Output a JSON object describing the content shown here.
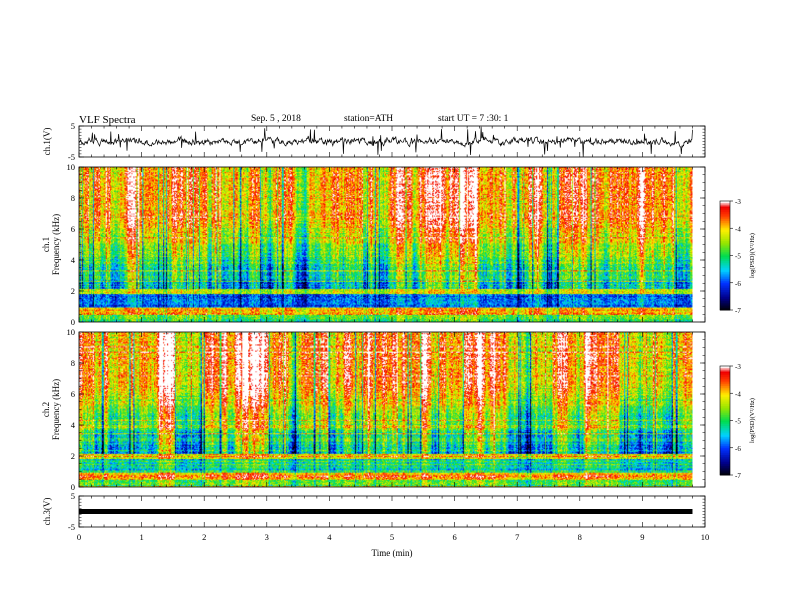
{
  "header": {
    "title": "VLF Spectra",
    "date": "Sep. 5 , 2018",
    "station": "station=ATH",
    "start": "start UT = 7 :30: 1"
  },
  "chart_data": [
    {
      "type": "line",
      "panel": "ch1-waveform",
      "ylabel": "ch.1(V)",
      "ylim": [
        -5,
        5
      ],
      "yticks": [
        "5",
        "-5"
      ],
      "xlim": [
        0,
        10
      ],
      "colors": {
        "line": "#000000"
      }
    },
    {
      "type": "heatmap",
      "panel": "ch1-spectrogram",
      "ylabel": "ch.1\nFrequency (kHz)",
      "ylabel_lines": [
        "ch.1",
        "Frequency (kHz)"
      ],
      "ylim": [
        0,
        10
      ],
      "yticks": [
        "0",
        "2",
        "4",
        "6",
        "8",
        "10"
      ],
      "xlim": [
        0,
        10
      ],
      "data_end_min": 9.8,
      "colorbar": {
        "label": "log(PSD)(V²/Hz)",
        "range": [
          -7,
          -3
        ],
        "ticks": [
          "-3",
          "-4",
          "-5",
          "-6",
          "-7"
        ]
      }
    },
    {
      "type": "heatmap",
      "panel": "ch2-spectrogram",
      "ylabel": "ch.2\nFrequency (kHz)",
      "ylabel_lines": [
        "ch.2",
        "Frequency (kHz)"
      ],
      "ylim": [
        0,
        10
      ],
      "yticks": [
        "0",
        "2",
        "4",
        "6",
        "8",
        "10"
      ],
      "xlim": [
        0,
        10
      ],
      "data_end_min": 9.8,
      "colorbar": {
        "label": "log(PSD)(V²/Hz)",
        "range": [
          -7,
          -3
        ],
        "ticks": [
          "-3",
          "-4",
          "-5",
          "-6",
          "-7"
        ]
      }
    },
    {
      "type": "line",
      "panel": "ch3-waveform",
      "ylabel": "ch.3(V)",
      "ylim": [
        -5,
        5
      ],
      "yticks": [
        "5",
        "-5"
      ],
      "xlim": [
        0,
        10
      ],
      "xlabel": "Time (min)",
      "xticks": [
        "0",
        "1",
        "2",
        "3",
        "4",
        "5",
        "6",
        "7",
        "8",
        "9",
        "10"
      ],
      "level_volts": 0,
      "colors": {
        "line": "#000000"
      }
    }
  ]
}
